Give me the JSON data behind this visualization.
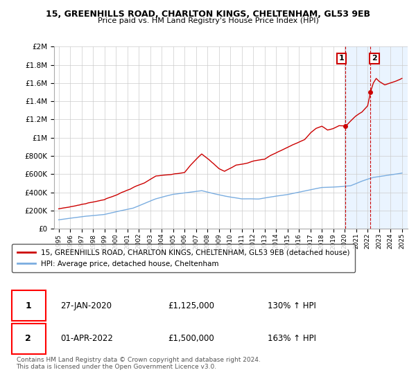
{
  "title": "15, GREENHILLS ROAD, CHARLTON KINGS, CHELTENHAM, GL53 9EB",
  "subtitle": "Price paid vs. HM Land Registry's House Price Index (HPI)",
  "ylabel_ticks": [
    "£0",
    "£200K",
    "£400K",
    "£600K",
    "£800K",
    "£1M",
    "£1.2M",
    "£1.4M",
    "£1.6M",
    "£1.8M",
    "£2M"
  ],
  "ylabel_values": [
    0,
    200000,
    400000,
    600000,
    800000,
    1000000,
    1200000,
    1400000,
    1600000,
    1800000,
    2000000
  ],
  "ylim": [
    0,
    2000000
  ],
  "xtick_years": [
    1995,
    1996,
    1997,
    1998,
    1999,
    2000,
    2001,
    2002,
    2003,
    2004,
    2005,
    2006,
    2007,
    2008,
    2009,
    2010,
    2011,
    2012,
    2013,
    2014,
    2015,
    2016,
    2017,
    2018,
    2019,
    2020,
    2021,
    2022,
    2023,
    2024,
    2025
  ],
  "hpi_line_color": "#7aade0",
  "price_line_color": "#cc0000",
  "marker_color": "#cc0000",
  "sale1_x": 2020.07,
  "sale1_y": 1125000,
  "sale2_x": 2022.25,
  "sale2_y": 1500000,
  "shade_start": 2020.0,
  "legend_line1": "15, GREENHILLS ROAD, CHARLTON KINGS, CHELTENHAM, GL53 9EB (detached house)",
  "legend_line2": "HPI: Average price, detached house, Cheltenham",
  "table_row1": [
    "1",
    "27-JAN-2020",
    "£1,125,000",
    "130% ↑ HPI"
  ],
  "table_row2": [
    "2",
    "01-APR-2022",
    "£1,500,000",
    "163% ↑ HPI"
  ],
  "footer": "Contains HM Land Registry data © Crown copyright and database right 2024.\nThis data is licensed under the Open Government Licence v3.0.",
  "background_color": "#ffffff",
  "grid_color": "#cccccc",
  "shaded_region_color": "#ddeeff"
}
